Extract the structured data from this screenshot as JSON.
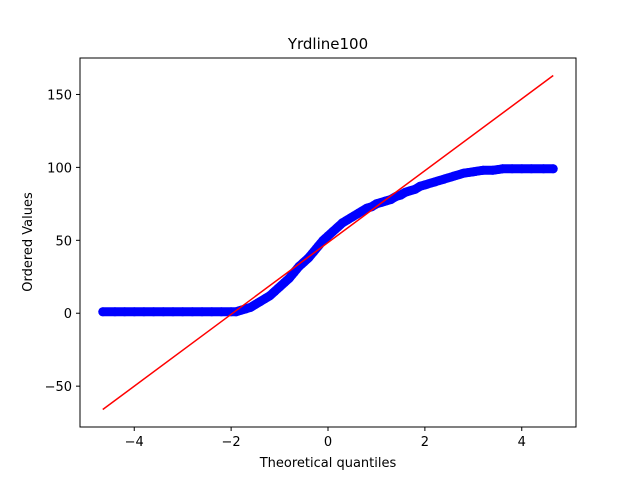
{
  "chart_data": {
    "type": "scatter",
    "title": "Yrdline100",
    "xlabel": "Theoretical quantiles",
    "ylabel": "Ordered Values",
    "xlim": [
      -5.12,
      5.12
    ],
    "ylim": [
      -78,
      175
    ],
    "xticks": [
      -4,
      -2,
      0,
      2,
      4
    ],
    "yticks": [
      -50,
      0,
      50,
      100,
      150
    ],
    "xtick_labels": [
      "−4",
      "−2",
      "0",
      "2",
      "4"
    ],
    "ytick_labels": [
      "−50",
      "0",
      "50",
      "100",
      "150"
    ],
    "grid": false,
    "series": [
      {
        "name": "Ordered Values",
        "kind": "points",
        "color": "#0000ff",
        "x": [
          -4.65,
          -4.4,
          -4.2,
          -4.0,
          -3.8,
          -3.6,
          -3.4,
          -3.2,
          -3.0,
          -2.8,
          -2.6,
          -2.4,
          -2.2,
          -2.0,
          -1.9,
          -1.8,
          -1.7,
          -1.6,
          -1.5,
          -1.4,
          -1.3,
          -1.2,
          -1.1,
          -1.0,
          -0.9,
          -0.8,
          -0.7,
          -0.6,
          -0.5,
          -0.4,
          -0.3,
          -0.2,
          -0.1,
          0.0,
          0.1,
          0.2,
          0.3,
          0.4,
          0.5,
          0.6,
          0.7,
          0.8,
          0.9,
          1.0,
          1.1,
          1.2,
          1.3,
          1.4,
          1.5,
          1.6,
          1.7,
          1.8,
          1.9,
          2.0,
          2.2,
          2.4,
          2.6,
          2.8,
          3.0,
          3.2,
          3.4,
          3.6,
          3.8,
          4.0,
          4.2,
          4.45,
          4.65
        ],
        "y": [
          1,
          1,
          1,
          1,
          1,
          1,
          1,
          1,
          1,
          1,
          1,
          1,
          1,
          1,
          1,
          2,
          3,
          4,
          6,
          8,
          10,
          12,
          15,
          18,
          21,
          24,
          28,
          32,
          35,
          38,
          42,
          46,
          50,
          53,
          56,
          59,
          62,
          64,
          66,
          68,
          70,
          72,
          73,
          75,
          76,
          77,
          78,
          80,
          81,
          83,
          84,
          85,
          87,
          88,
          90,
          92,
          94,
          96,
          97,
          98,
          98,
          99,
          99,
          99,
          99,
          99,
          99
        ]
      },
      {
        "name": "Reference line",
        "kind": "line",
        "color": "#ff0000",
        "x": [
          -4.65,
          4.65
        ],
        "y": [
          -66,
          163
        ]
      }
    ]
  }
}
